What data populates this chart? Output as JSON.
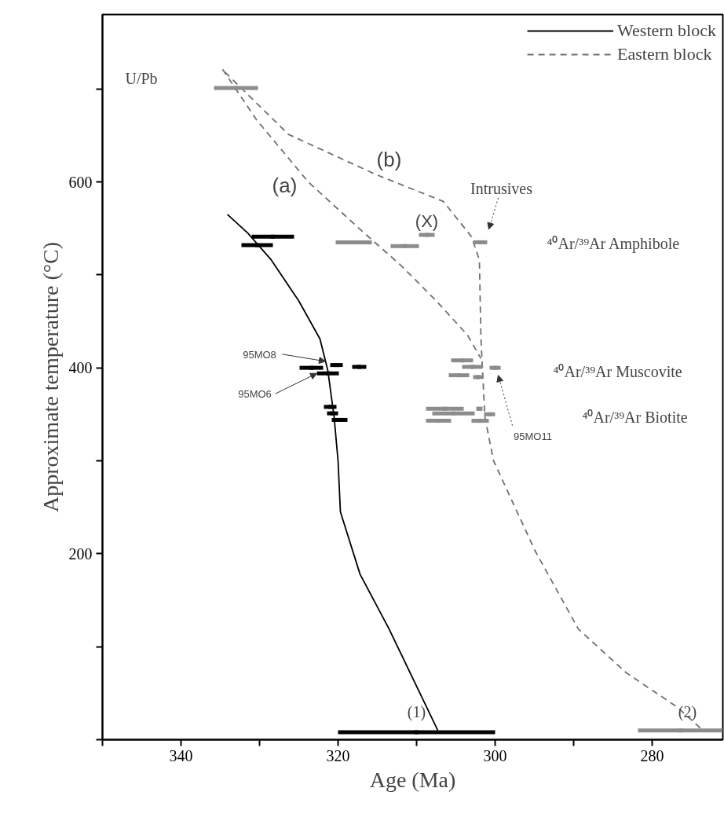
{
  "chart_data": {
    "type": "line",
    "xlabel": "Age (Ma)",
    "ylabel": "Approximate temperature (°C)",
    "xlim": [
      350,
      271
    ],
    "ylim": [
      0,
      780
    ],
    "xticks": [
      {
        "value": 350,
        "label": null
      },
      340,
      {
        "value": 330,
        "label": null
      },
      320,
      {
        "value": 310,
        "label": null
      },
      300,
      {
        "value": 290,
        "label": null
      },
      280
    ],
    "yticks": [
      {
        "value": 0,
        "label": null
      },
      {
        "value": 100,
        "label": null
      },
      200,
      {
        "value": 300,
        "label": null
      },
      400,
      {
        "value": 500,
        "label": null
      },
      600,
      {
        "value": 700,
        "label": null
      }
    ],
    "grid": false,
    "legend": "top right",
    "series": [
      {
        "name": "Western block",
        "line_style": "solid",
        "color": "#000000",
        "x": [
          334.1,
          331.5,
          328.5,
          325.0,
          322.3,
          321.3,
          320.5,
          320.0,
          319.7,
          317.2,
          313.5,
          307.3
        ],
        "values": [
          565,
          545,
          516,
          472,
          431,
          397,
          347,
          300,
          245,
          178,
          119,
          10
        ]
      },
      {
        "name": "Eastern block",
        "line_style": "dashed",
        "color": "#707070",
        "x": [
          334.4,
          326.3,
          315.2,
          306.6,
          303.0,
          302.0,
          301.8,
          301.3,
          300.2,
          294.9,
          289.4,
          283.3,
          276.8,
          273.8
        ],
        "values": [
          718,
          651,
          608,
          579,
          541,
          516,
          431,
          347,
          300,
          203,
          119,
          72,
          35,
          12
        ]
      },
      {
        "line_style": "dashed",
        "color": "#707070",
        "x": [
          334.7,
          330.4,
          323.8,
          317.2,
          312.1,
          307.6,
          303.5,
          301.8
        ],
        "values": [
          721,
          667,
          600,
          549,
          511,
          473,
          435,
          410
        ]
      },
      {
        "type": "scatter",
        "marker": "square",
        "color": "#000000",
        "x": [
          328.3,
          330.3,
          323.4,
          320.2,
          317.3,
          321.3,
          321.0,
          320.7,
          319.8,
          310.0
        ],
        "values": [
          541,
          532,
          400,
          403,
          401,
          394,
          358,
          351,
          344,
          8
        ],
        "xerrors": [
          2.7,
          2.0,
          1.5,
          0.8,
          0.9,
          1.4,
          0.8,
          0.7,
          1.0,
          10.0
        ]
      },
      {
        "type": "scatter",
        "marker": "square",
        "color": "#8c8c8c",
        "x": [
          333.0,
          318.0,
          311.5,
          308.7,
          301.9,
          304.2,
          302.9,
          300.0,
          304.6,
          302.2,
          306.4,
          302.0,
          305.3,
          300.7,
          307.2,
          301.9,
          276.4
        ],
        "values": [
          701,
          535,
          531,
          543,
          535,
          408,
          401,
          400,
          392,
          390,
          356,
          356,
          351,
          350,
          343,
          343,
          10
        ],
        "xerrors": [
          2.8,
          2.3,
          1.8,
          1.0,
          0.9,
          1.4,
          1.3,
          0.7,
          1.3,
          0.6,
          2.4,
          0.4,
          2.7,
          0.7,
          1.6,
          1.1,
          5.4
        ]
      }
    ],
    "annotations": [
      "U/Pb",
      "(a)",
      "(b)",
      "(X)",
      "Intrusives",
      "⁴⁰Ar/³⁹Ar Amphibole",
      "⁴⁰Ar/³⁹Ar Muscovite",
      "⁴⁰Ar/³⁹Ar Biotite",
      {
        "text": "95MO8",
        "x": 321.6,
        "y": 407
      },
      {
        "text": "95MO6",
        "x": 322.7,
        "y": 394
      },
      "95MO11",
      "(1)",
      "(2)"
    ]
  }
}
